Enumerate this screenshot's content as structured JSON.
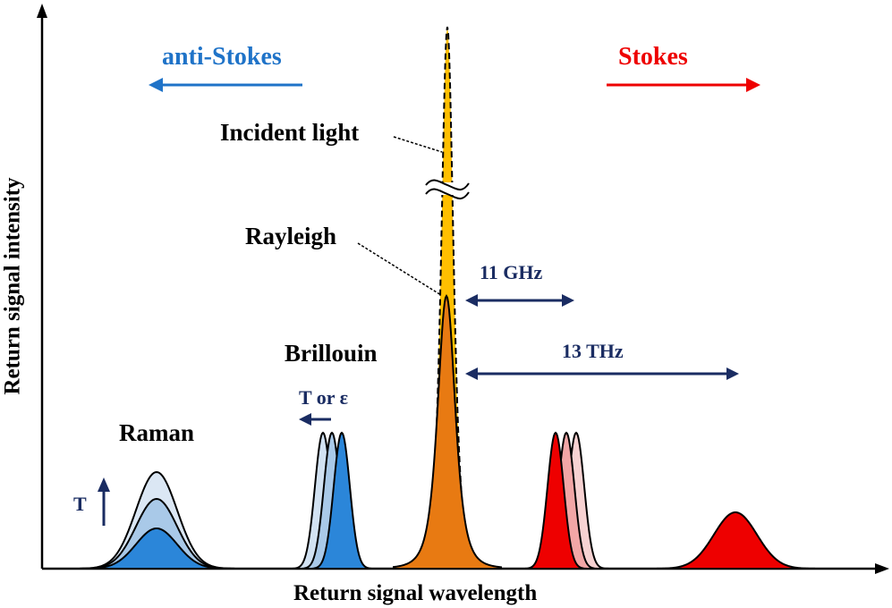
{
  "labels": {
    "anti_stokes": "anti-Stokes",
    "stokes": "Stokes",
    "incident_light": "Incident light",
    "rayleigh": "Rayleigh",
    "brillouin": "Brillouin",
    "raman": "Raman",
    "t_or_eps": "T or ε",
    "t": "T",
    "shift_11ghz": "11 GHz",
    "shift_13thz": "13 THz"
  },
  "axes": {
    "x_label": "Return signal wavelength",
    "y_label": "Return signal intensity"
  },
  "colors": {
    "anti_stokes": "#1f73c8",
    "stokes": "#ee0000",
    "navy": "#1a2c62",
    "incident": "#ffbf00",
    "rayleigh": "#e87a12",
    "brillouin_blue": "#2b86d9",
    "brillouin_blue_light": "#a9c9e8",
    "brillouin_blue_lighter": "#d2e2f2",
    "raman_blue": "#2b86d9",
    "raman_blue_light": "#a9c9e8",
    "raman_blue_lighter": "#dbe7f4",
    "red": "#ee0000",
    "red_light": "#f2a6a6",
    "red_lighter": "#f7d2d2"
  }
}
